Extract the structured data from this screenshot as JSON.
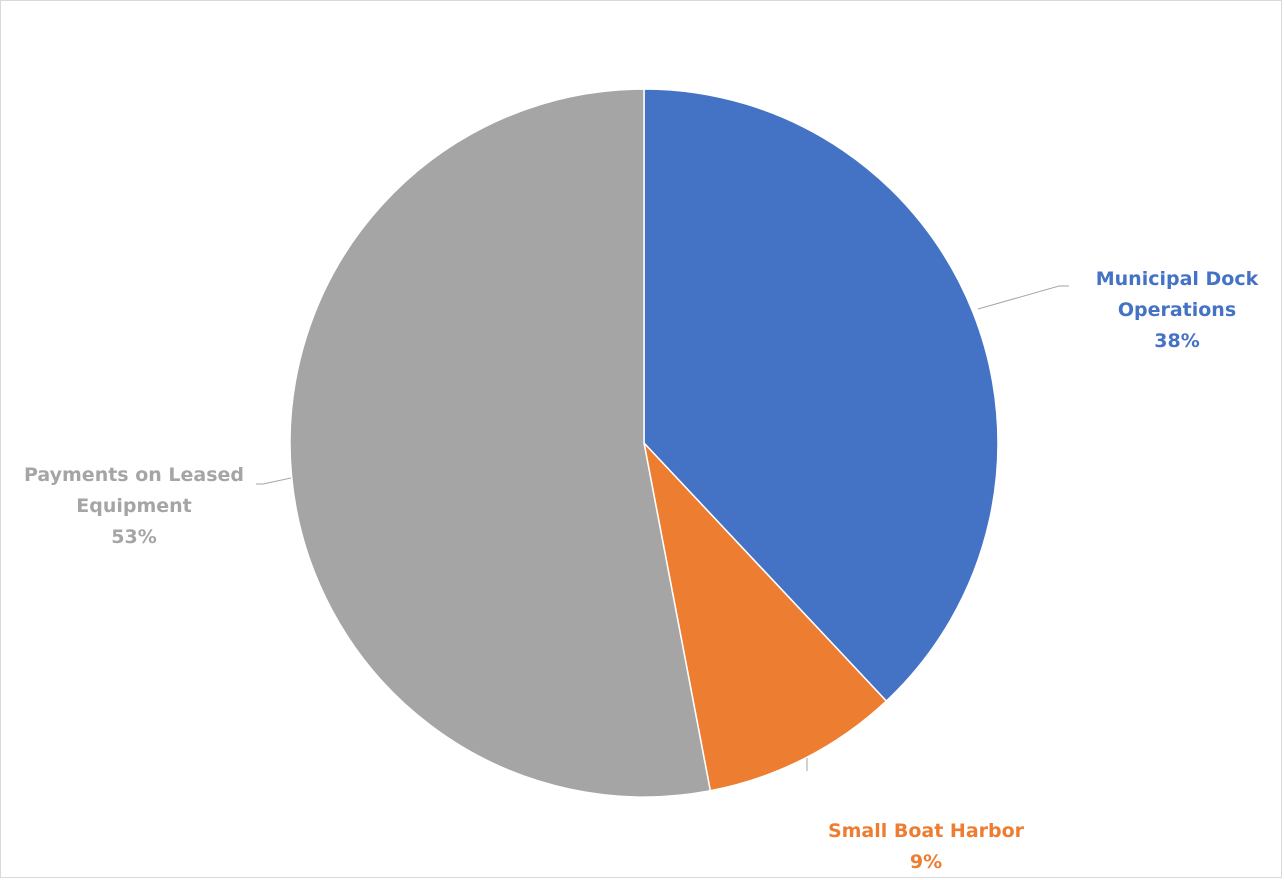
{
  "chart_data": {
    "type": "pie",
    "title": "",
    "start_angle_deg": 0,
    "direction": "clockwise",
    "slices": [
      {
        "label_lines": [
          "Municipal Dock",
          "Operations"
        ],
        "percent_label": "38%",
        "value": 38,
        "color": "#4472C4"
      },
      {
        "label_lines": [
          "Small Boat Harbor"
        ],
        "percent_label": "9%",
        "value": 9,
        "color": "#ED7D31"
      },
      {
        "label_lines": [
          "Payments on Leased",
          "Equipment"
        ],
        "percent_label": "53%",
        "value": 53,
        "color": "#A5A5A5"
      }
    ],
    "leader_line_color": "#A6A6A6",
    "legend": "none"
  }
}
